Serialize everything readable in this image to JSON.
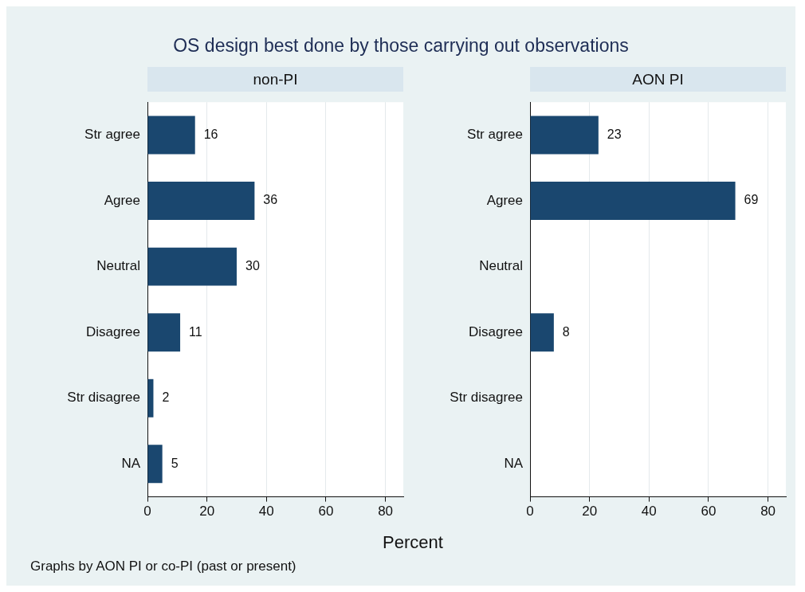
{
  "chart_data": [
    {
      "type": "bar",
      "orientation": "horizontal",
      "title": "OS design best done by those carrying out observations",
      "subtitle": "non-PI",
      "xlabel": "Percent",
      "annotations": [
        "Graphs by AON PI or co-PI (past or present)"
      ],
      "categories": [
        "Str agree",
        "Agree",
        "Neutral",
        "Disagree",
        "Str disagree",
        "NA"
      ],
      "values": [
        16,
        36,
        30,
        11,
        2,
        5
      ],
      "color": "#1a476f",
      "xlim": [
        0,
        86
      ],
      "xticks": [
        0,
        20,
        40,
        60,
        80
      ],
      "grid": "x",
      "data_labels": true
    },
    {
      "type": "bar",
      "orientation": "horizontal",
      "subtitle": "AON PI",
      "categories": [
        "Str agree",
        "Agree",
        "Neutral",
        "Disagree",
        "Str disagree",
        "NA"
      ],
      "values": [
        23,
        69,
        null,
        8,
        null,
        null
      ],
      "color": "#1a476f",
      "xlim": [
        0,
        86
      ],
      "xticks": [
        0,
        20,
        40,
        60,
        80
      ],
      "grid": "x",
      "data_labels": true
    }
  ]
}
